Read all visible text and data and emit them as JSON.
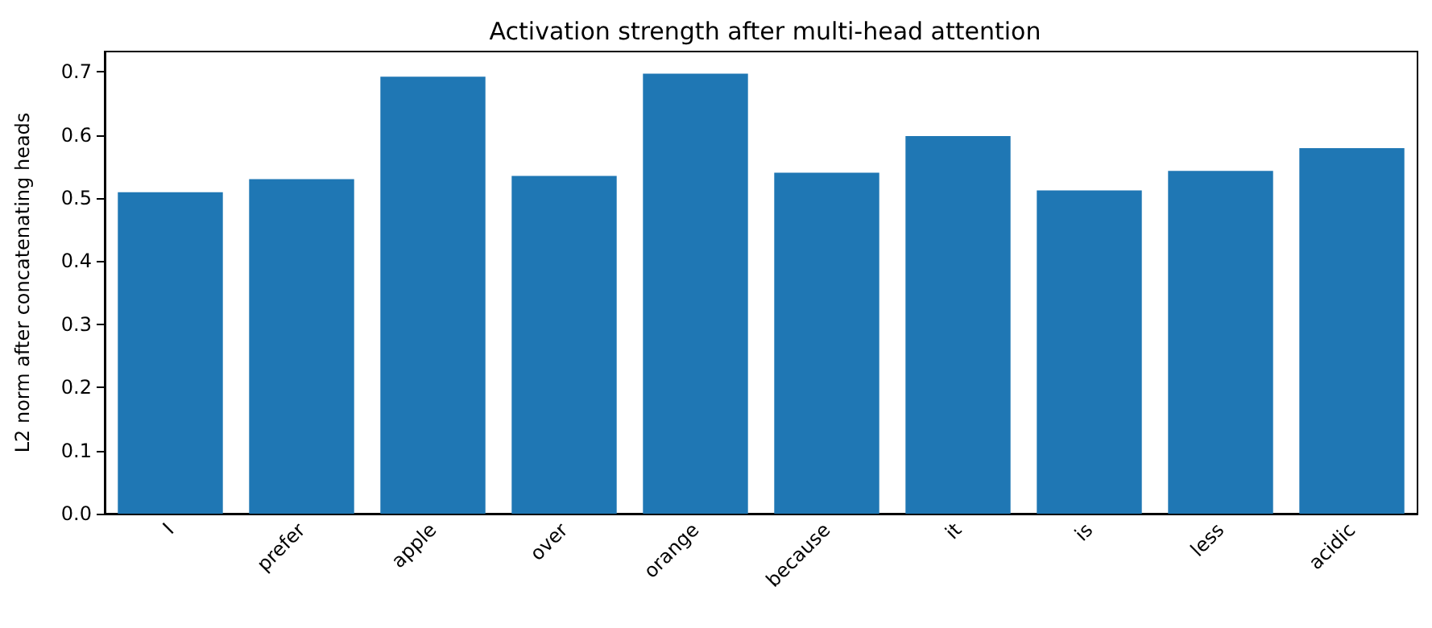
{
  "chart_data": {
    "type": "bar",
    "title": "Activation strength after multi-head attention",
    "ylabel": "L2 norm after concatenating heads",
    "categories": [
      "I",
      "prefer",
      "apple",
      "over",
      "orange",
      "because",
      "it",
      "is",
      "less",
      "acidic"
    ],
    "values": [
      0.509,
      0.53,
      0.692,
      0.535,
      0.697,
      0.54,
      0.598,
      0.512,
      0.543,
      0.579
    ],
    "color": "#1f77b4",
    "ylim": [
      0,
      0.732
    ],
    "yticks": [
      {
        "value": 0,
        "label": "0.0"
      },
      0.1,
      0.2,
      0.3,
      0.4,
      0.5,
      0.6,
      0.7
    ],
    "grid": false
  }
}
